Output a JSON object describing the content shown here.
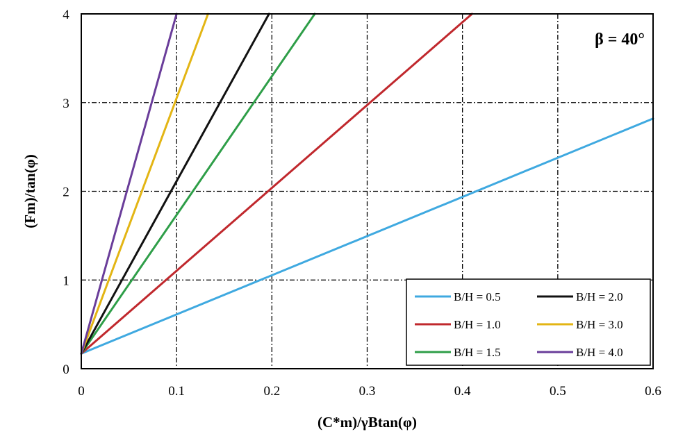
{
  "chart_data": {
    "type": "line",
    "xlabel": "(C*m)/γBtan(φ)",
    "ylabel": "(Fm)/tan(φ)",
    "annotation": "β = 40°",
    "xlim": [
      0,
      0.6
    ],
    "ylim": [
      0,
      4
    ],
    "x_ticks": [
      "0",
      "0.1",
      "0.2",
      "0.3",
      "0.4",
      "0.5",
      "0.6"
    ],
    "y_ticks": [
      "0",
      "1",
      "2",
      "3",
      "4"
    ],
    "grid": true,
    "legend_position": "bottom-right",
    "series": [
      {
        "name": "B/H = 0.5",
        "color": "#3fa9e0",
        "x": [
          0,
          0.6
        ],
        "y": [
          0.17,
          2.82
        ]
      },
      {
        "name": "B/H = 1.0",
        "color": "#c0282d",
        "x": [
          0,
          0.41
        ],
        "y": [
          0.17,
          4.0
        ]
      },
      {
        "name": "B/H = 1.5",
        "color": "#2e9e48",
        "x": [
          0,
          0.245
        ],
        "y": [
          0.17,
          4.0
        ]
      },
      {
        "name": "B/H = 2.0",
        "color": "#111111",
        "x": [
          0,
          0.197
        ],
        "y": [
          0.17,
          4.0
        ]
      },
      {
        "name": "B/H = 3.0",
        "color": "#e3b514",
        "x": [
          0,
          0.133
        ],
        "y": [
          0.17,
          4.0
        ]
      },
      {
        "name": "B/H = 4.0",
        "color": "#6a3d9a",
        "x": [
          0,
          0.1
        ],
        "y": [
          0.17,
          4.0
        ]
      }
    ],
    "legend_order": [
      0,
      3,
      1,
      4,
      2,
      5
    ]
  }
}
